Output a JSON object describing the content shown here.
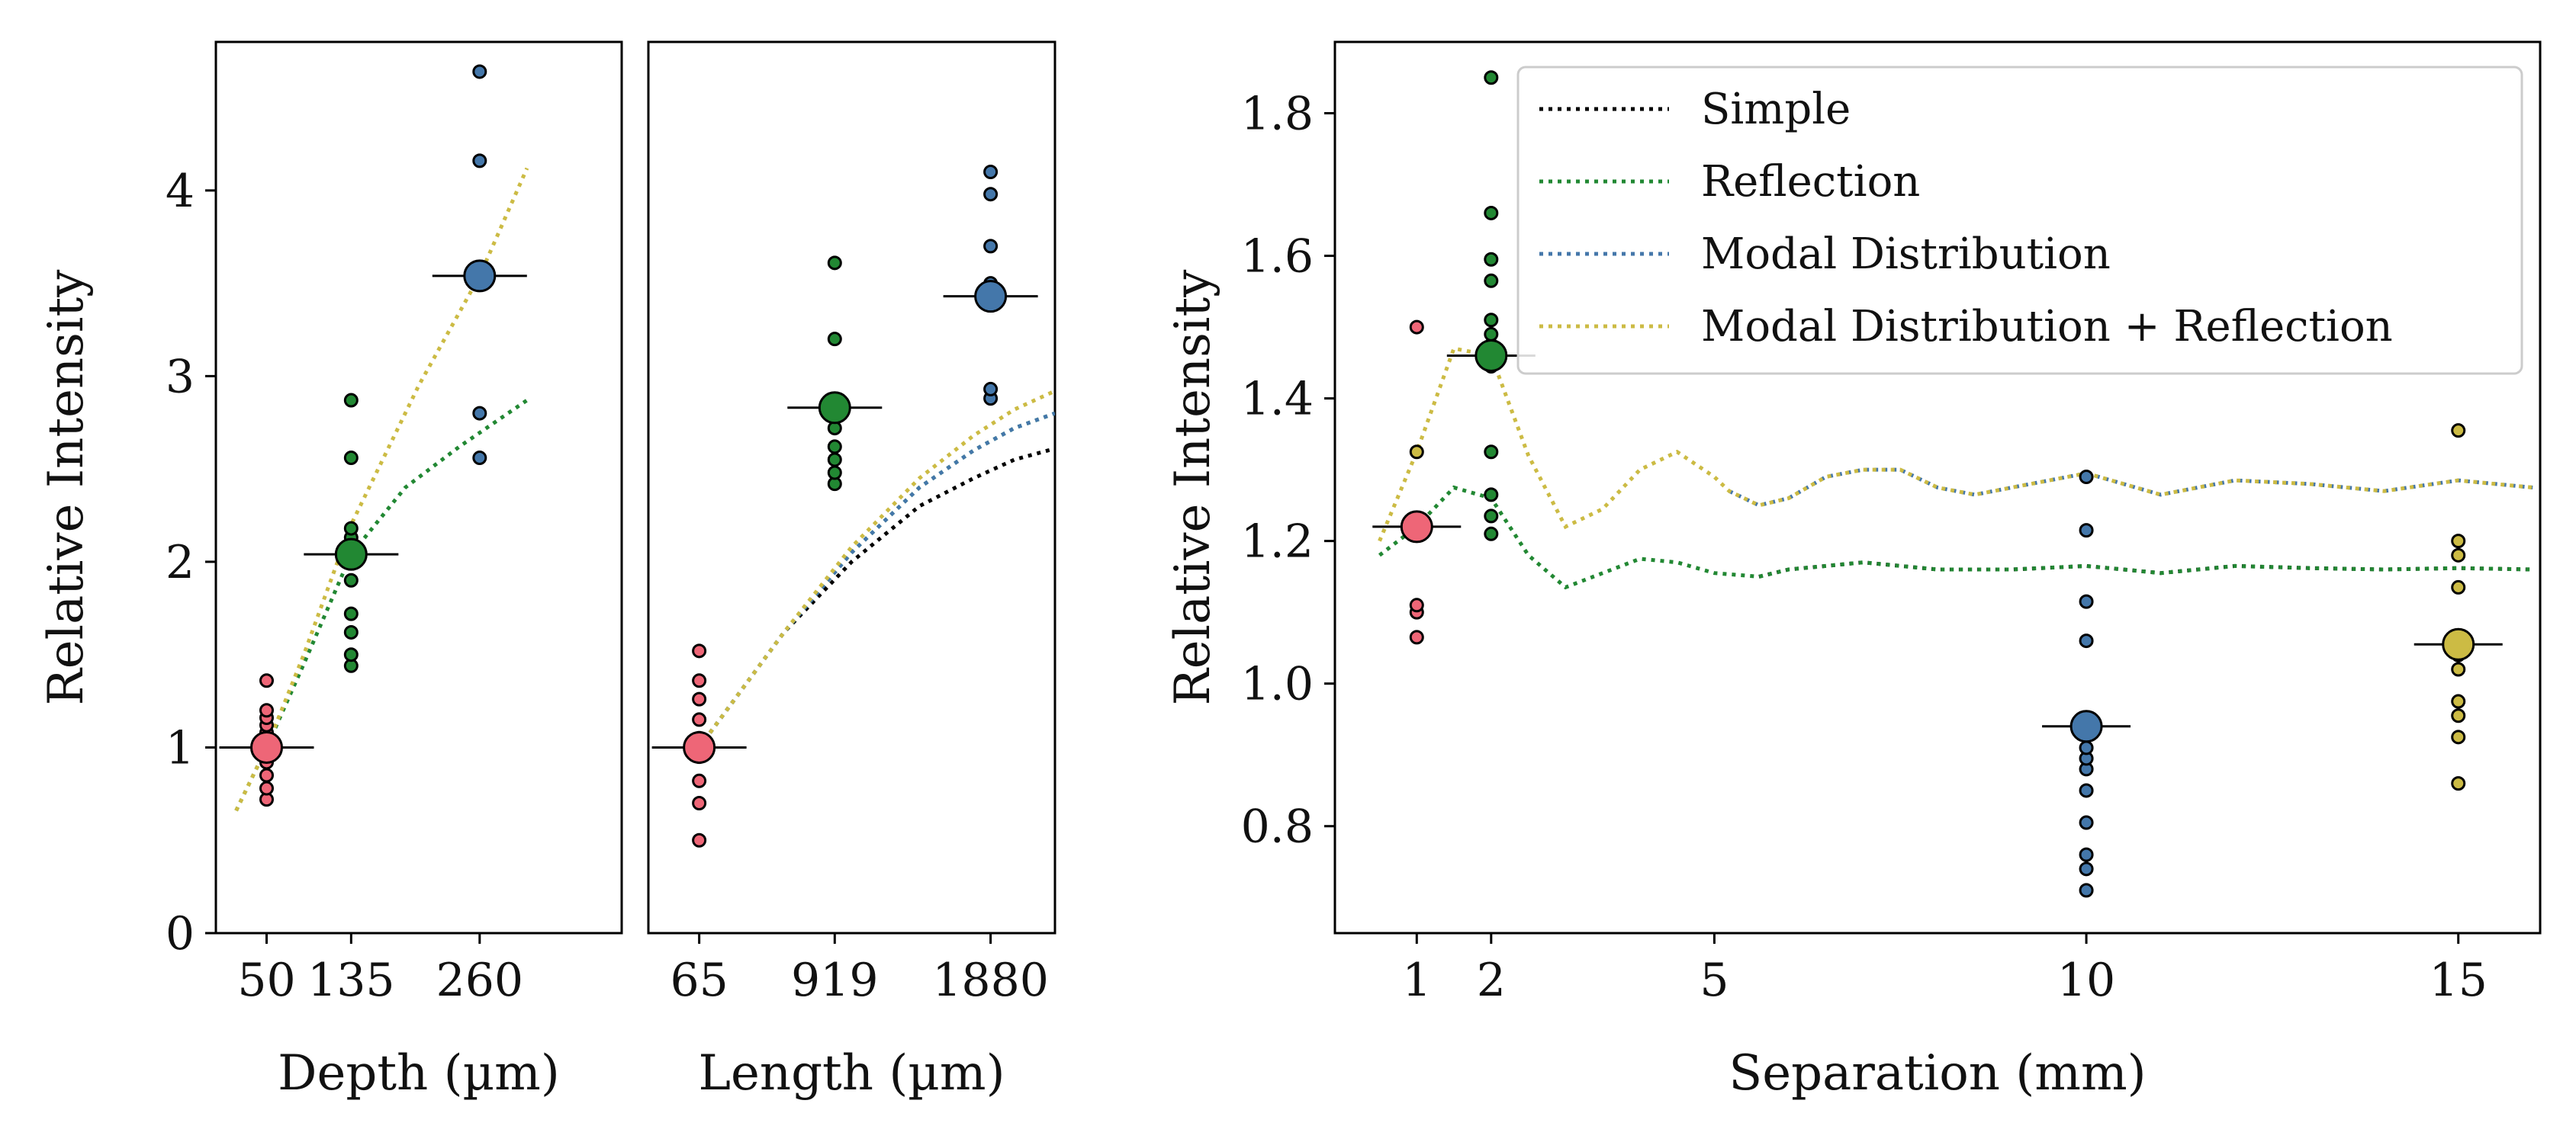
{
  "colors": {
    "c50": "#ee6677",
    "c135": "#228833",
    "c260": "#4477aa",
    "c15": "#ccbb44",
    "simple": "#000000",
    "reflection": "#228833",
    "modal": "#4477aa",
    "modal_reflection": "#ccbb44"
  },
  "chart_data": [
    {
      "id": "depth",
      "type": "scatter",
      "xlabel": "Depth (µm)",
      "ylabel": "Relative Intensity",
      "xlim": [
        0,
        600
      ],
      "ylim": [
        0,
        4.8
      ],
      "yticks": [
        0,
        1,
        2,
        3,
        4
      ],
      "xticks": [
        {
          "x": 75,
          "label": "50"
        },
        {
          "x": 200,
          "label": "135"
        },
        {
          "x": 390,
          "label": "260"
        }
      ],
      "groups": [
        {
          "x": 75,
          "color_key": "c50",
          "mean": 1.0,
          "points": [
            0.72,
            0.78,
            0.85,
            0.92,
            1.03,
            1.08,
            1.12,
            1.16,
            1.2,
            1.36
          ]
        },
        {
          "x": 200,
          "color_key": "c135",
          "mean": 2.04,
          "points": [
            1.44,
            1.5,
            1.62,
            1.72,
            1.9,
            2.02,
            2.08,
            2.13,
            2.18,
            2.56,
            2.87
          ]
        },
        {
          "x": 390,
          "color_key": "c260",
          "mean": 3.54,
          "points": [
            2.56,
            2.8,
            3.5,
            3.56,
            4.16,
            4.64
          ]
        }
      ],
      "series": [
        {
          "name": "Reflection",
          "color_key": "reflection",
          "x": [
            30,
            75,
            130,
            200,
            280,
            360,
            460
          ],
          "y": [
            0.66,
            1.0,
            1.45,
            2.04,
            2.4,
            2.62,
            2.87
          ]
        },
        {
          "name": "Modal Distribution + Reflection",
          "color_key": "modal_reflection",
          "x": [
            30,
            75,
            130,
            200,
            300,
            390,
            460
          ],
          "y": [
            0.66,
            1.0,
            1.5,
            2.2,
            2.95,
            3.54,
            4.12
          ]
        }
      ]
    },
    {
      "id": "length",
      "type": "scatter",
      "xlabel": "Length (µm)",
      "ylabel": "",
      "xlim": [
        0,
        600
      ],
      "ylim": [
        0,
        4.8
      ],
      "xticks": [
        {
          "x": 75,
          "label": "65"
        },
        {
          "x": 275,
          "label": "919"
        },
        {
          "x": 505,
          "label": "1880"
        }
      ],
      "groups": [
        {
          "x": 75,
          "color_key": "c50",
          "mean": 1.0,
          "points": [
            0.5,
            0.7,
            0.82,
            0.95,
            1.05,
            1.15,
            1.26,
            1.36,
            1.52
          ]
        },
        {
          "x": 275,
          "color_key": "c135",
          "mean": 2.83,
          "points": [
            2.42,
            2.48,
            2.55,
            2.62,
            2.72,
            3.2,
            3.61
          ]
        },
        {
          "x": 505,
          "color_key": "c260",
          "mean": 3.43,
          "points": [
            2.88,
            2.93,
            3.4,
            3.5,
            3.7,
            3.98,
            4.1
          ]
        }
      ],
      "series": [
        {
          "name": "Simple",
          "color_key": "simple",
          "x": [
            75,
            200,
            300,
            400,
            480,
            540,
            600
          ],
          "y": [
            1.0,
            1.62,
            2.0,
            2.3,
            2.45,
            2.55,
            2.61
          ]
        },
        {
          "name": "Reflection",
          "color_key": "reflection",
          "x": [
            75,
            200,
            300,
            400,
            480,
            540,
            600
          ],
          "y": [
            1.0,
            1.62,
            2.05,
            2.4,
            2.6,
            2.72,
            2.8
          ]
        },
        {
          "name": "Modal Distribution",
          "color_key": "modal",
          "x": [
            75,
            200,
            300,
            400,
            480,
            540,
            600
          ],
          "y": [
            1.0,
            1.62,
            2.05,
            2.4,
            2.6,
            2.72,
            2.8
          ]
        },
        {
          "name": "Modal Distribution + Reflection",
          "color_key": "modal_reflection",
          "x": [
            75,
            200,
            300,
            400,
            480,
            540,
            600
          ],
          "y": [
            1.0,
            1.62,
            2.08,
            2.45,
            2.68,
            2.82,
            2.92
          ]
        }
      ]
    },
    {
      "id": "separation",
      "type": "scatter",
      "xlabel": "Separation (mm)",
      "ylabel": "Relative Intensity",
      "xlim": [
        -0.1,
        16.1
      ],
      "ylim": [
        0.65,
        1.9
      ],
      "yticks": [
        0.8,
        1.0,
        1.2,
        1.4,
        1.6,
        1.8
      ],
      "ytick_labels": [
        "0.8",
        "1.0",
        "1.2",
        "1.4",
        "1.6",
        "1.8"
      ],
      "xticks": [
        {
          "x": 1,
          "label": "1"
        },
        {
          "x": 2,
          "label": "2"
        },
        {
          "x": 5,
          "label": "5"
        },
        {
          "x": 10,
          "label": "10"
        },
        {
          "x": 15,
          "label": "15"
        }
      ],
      "groups": [
        {
          "x": 1,
          "color_key": "c50",
          "mean": 1.22,
          "points": [
            1.065,
            1.1,
            1.11,
            1.5
          ]
        },
        {
          "x": 1,
          "color_key": "c15",
          "mean": null,
          "points": [
            1.325
          ]
        },
        {
          "x": 2,
          "color_key": "c135",
          "mean": 1.46,
          "points": [
            1.21,
            1.235,
            1.265,
            1.325,
            1.445,
            1.475,
            1.49,
            1.51,
            1.565,
            1.595,
            1.66,
            1.85
          ]
        },
        {
          "x": 10,
          "color_key": "c260",
          "mean": 0.94,
          "points": [
            0.71,
            0.74,
            0.76,
            0.805,
            0.85,
            0.88,
            0.895,
            0.91,
            1.06,
            1.115,
            1.215,
            1.29
          ]
        },
        {
          "x": 15,
          "color_key": "c15",
          "mean": 1.055,
          "points": [
            0.86,
            0.925,
            0.955,
            0.975,
            1.02,
            1.04,
            1.135,
            1.18,
            1.2,
            1.355
          ]
        }
      ],
      "series": [
        {
          "name": "Simple",
          "color_key": "simple",
          "x": [
            5.6,
            6,
            7,
            8,
            9,
            10,
            11,
            12,
            13,
            14,
            15,
            16
          ],
          "y": [
            1.15,
            1.16,
            1.17,
            1.16,
            1.16,
            1.165,
            1.155,
            1.165,
            1.162,
            1.16,
            1.162,
            1.16
          ]
        },
        {
          "name": "Reflection",
          "color_key": "reflection",
          "x": [
            0.5,
            1,
            1.5,
            2,
            2.5,
            3,
            3.5,
            4,
            4.5,
            5,
            5.6,
            6,
            7,
            8,
            9,
            10,
            11,
            12,
            13,
            14,
            15,
            16
          ],
          "y": [
            1.18,
            1.22,
            1.275,
            1.26,
            1.18,
            1.135,
            1.155,
            1.175,
            1.17,
            1.155,
            1.15,
            1.16,
            1.17,
            1.16,
            1.16,
            1.165,
            1.155,
            1.165,
            1.162,
            1.16,
            1.162,
            1.16
          ]
        },
        {
          "name": "Modal Distribution",
          "color_key": "modal",
          "x": [
            5.2,
            5.6,
            6,
            6.5,
            7,
            7.5,
            8,
            8.5,
            9,
            10,
            10.5,
            11,
            12,
            13,
            14,
            15,
            16
          ],
          "y": [
            1.27,
            1.25,
            1.26,
            1.29,
            1.3,
            1.3,
            1.275,
            1.265,
            1.275,
            1.295,
            1.28,
            1.265,
            1.285,
            1.28,
            1.27,
            1.285,
            1.275
          ]
        },
        {
          "name": "Modal Distribution + Reflection",
          "color_key": "modal_reflection",
          "x": [
            0.5,
            1,
            1.5,
            2,
            2.5,
            3,
            3.5,
            4,
            4.5,
            5,
            5.2,
            5.6,
            6,
            6.5,
            7,
            7.5,
            8,
            8.5,
            9,
            10,
            10.5,
            11,
            12,
            13,
            14,
            15,
            16
          ],
          "y": [
            1.2,
            1.325,
            1.47,
            1.46,
            1.32,
            1.22,
            1.245,
            1.3,
            1.325,
            1.29,
            1.27,
            1.25,
            1.26,
            1.29,
            1.3,
            1.3,
            1.275,
            1.265,
            1.275,
            1.295,
            1.28,
            1.265,
            1.285,
            1.28,
            1.27,
            1.285,
            1.275
          ]
        }
      ],
      "legend": {
        "position": "top-right",
        "entries": [
          {
            "label": "Simple",
            "color_key": "simple"
          },
          {
            "label": "Reflection",
            "color_key": "reflection"
          },
          {
            "label": "Modal Distribution",
            "color_key": "modal"
          },
          {
            "label": "Modal Distribution + Reflection",
            "color_key": "modal_reflection"
          }
        ]
      }
    }
  ]
}
